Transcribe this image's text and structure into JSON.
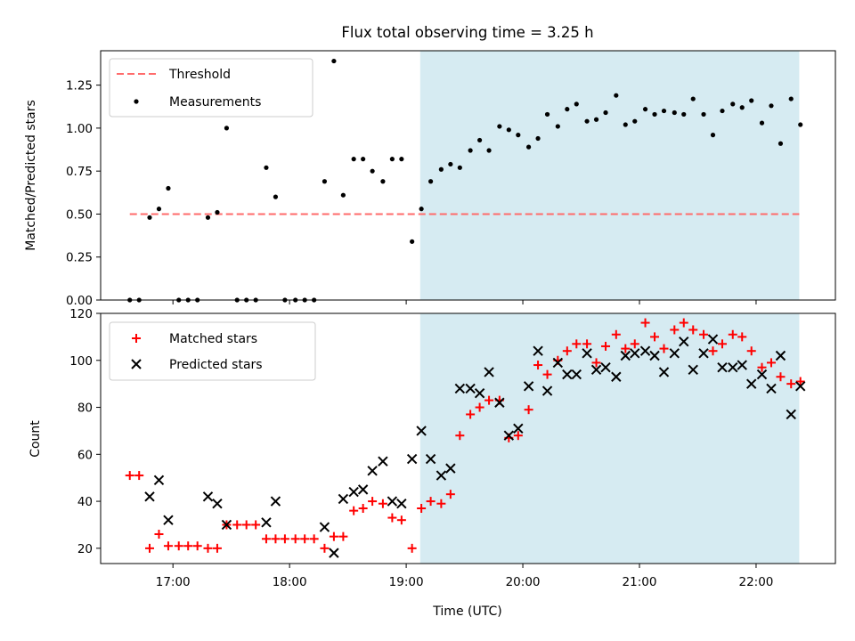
{
  "chart_data": [
    {
      "type": "scatter",
      "title": "Flux total observing time = 3.25 h",
      "ylabel": "Matched/Predicted stars",
      "ylim": [
        0,
        1.45
      ],
      "xlim": [
        16.38,
        22.68
      ],
      "yticks": [
        0.0,
        0.25,
        0.5,
        0.75,
        1.0,
        1.25
      ],
      "ytick_labels": [
        "0.00",
        "0.25",
        "0.50",
        "0.75",
        "1.00",
        "1.25"
      ],
      "legend_position": "upper-left",
      "shaded_region": {
        "x0": 19.12,
        "x1": 22.37,
        "color": "#add8e6"
      },
      "threshold": {
        "name": "Threshold",
        "y": 0.5,
        "x0": 16.63,
        "x1": 22.37,
        "color": "#ff6b6b"
      },
      "series": [
        {
          "name": "Measurements",
          "color": "#000000",
          "points": [
            [
              16.63,
              0.0
            ],
            [
              16.71,
              0.0
            ],
            [
              16.8,
              0.48
            ],
            [
              16.88,
              0.53
            ],
            [
              16.96,
              0.65
            ],
            [
              17.05,
              0.0
            ],
            [
              17.13,
              0.0
            ],
            [
              17.21,
              0.0
            ],
            [
              17.3,
              0.48
            ],
            [
              17.38,
              0.51
            ],
            [
              17.46,
              1.0
            ],
            [
              17.55,
              0.0
            ],
            [
              17.63,
              0.0
            ],
            [
              17.71,
              0.0
            ],
            [
              17.8,
              0.77
            ],
            [
              17.88,
              0.6
            ],
            [
              17.96,
              0.0
            ],
            [
              18.05,
              0.0
            ],
            [
              18.13,
              0.0
            ],
            [
              18.21,
              0.0
            ],
            [
              18.3,
              0.69
            ],
            [
              18.38,
              1.39
            ],
            [
              18.46,
              0.61
            ],
            [
              18.55,
              0.82
            ],
            [
              18.63,
              0.82
            ],
            [
              18.71,
              0.75
            ],
            [
              18.8,
              0.69
            ],
            [
              18.88,
              0.82
            ],
            [
              18.96,
              0.82
            ],
            [
              19.05,
              0.34
            ],
            [
              19.13,
              0.53
            ],
            [
              19.21,
              0.69
            ],
            [
              19.3,
              0.76
            ],
            [
              19.38,
              0.79
            ],
            [
              19.46,
              0.77
            ],
            [
              19.55,
              0.87
            ],
            [
              19.63,
              0.93
            ],
            [
              19.71,
              0.87
            ],
            [
              19.8,
              1.01
            ],
            [
              19.88,
              0.99
            ],
            [
              19.96,
              0.96
            ],
            [
              20.05,
              0.89
            ],
            [
              20.13,
              0.94
            ],
            [
              20.21,
              1.08
            ],
            [
              20.3,
              1.01
            ],
            [
              20.38,
              1.11
            ],
            [
              20.46,
              1.14
            ],
            [
              20.55,
              1.04
            ],
            [
              20.63,
              1.05
            ],
            [
              20.71,
              1.09
            ],
            [
              20.8,
              1.19
            ],
            [
              20.88,
              1.02
            ],
            [
              20.96,
              1.04
            ],
            [
              21.05,
              1.11
            ],
            [
              21.13,
              1.08
            ],
            [
              21.21,
              1.1
            ],
            [
              21.3,
              1.09
            ],
            [
              21.38,
              1.08
            ],
            [
              21.46,
              1.17
            ],
            [
              21.55,
              1.08
            ],
            [
              21.63,
              0.96
            ],
            [
              21.71,
              1.1
            ],
            [
              21.8,
              1.14
            ],
            [
              21.88,
              1.12
            ],
            [
              21.96,
              1.16
            ],
            [
              22.05,
              1.03
            ],
            [
              22.13,
              1.13
            ],
            [
              22.21,
              0.91
            ],
            [
              22.3,
              1.17
            ],
            [
              22.38,
              1.02
            ]
          ]
        }
      ]
    },
    {
      "type": "scatter",
      "xlabel": "Time (UTC)",
      "ylabel": "Count",
      "ylim": [
        13.5,
        120
      ],
      "xlim": [
        16.38,
        22.68
      ],
      "xticks": [
        17,
        18,
        19,
        20,
        21,
        22
      ],
      "xtick_labels": [
        "17:00",
        "18:00",
        "19:00",
        "20:00",
        "21:00",
        "22:00"
      ],
      "yticks": [
        20,
        40,
        60,
        80,
        100,
        120
      ],
      "ytick_labels": [
        "20",
        "40",
        "60",
        "80",
        "100",
        "120"
      ],
      "legend_position": "upper-left",
      "shaded_region": {
        "x0": 19.12,
        "x1": 22.37,
        "color": "#add8e6"
      },
      "series": [
        {
          "name": "Matched stars",
          "marker": "plus",
          "color": "#ff0000",
          "points": [
            [
              16.63,
              51
            ],
            [
              16.71,
              51
            ],
            [
              16.8,
              20
            ],
            [
              16.88,
              26
            ],
            [
              16.96,
              21
            ],
            [
              17.05,
              21
            ],
            [
              17.13,
              21
            ],
            [
              17.21,
              21
            ],
            [
              17.3,
              20
            ],
            [
              17.38,
              20
            ],
            [
              17.46,
              30
            ],
            [
              17.55,
              30
            ],
            [
              17.63,
              30
            ],
            [
              17.71,
              30
            ],
            [
              17.8,
              24
            ],
            [
              17.88,
              24
            ],
            [
              17.96,
              24
            ],
            [
              18.05,
              24
            ],
            [
              18.13,
              24
            ],
            [
              18.21,
              24
            ],
            [
              18.3,
              20
            ],
            [
              18.38,
              25
            ],
            [
              18.46,
              25
            ],
            [
              18.55,
              36
            ],
            [
              18.63,
              37
            ],
            [
              18.71,
              40
            ],
            [
              18.8,
              39
            ],
            [
              18.88,
              33
            ],
            [
              18.96,
              32
            ],
            [
              19.05,
              20
            ],
            [
              19.13,
              37
            ],
            [
              19.21,
              40
            ],
            [
              19.3,
              39
            ],
            [
              19.38,
              43
            ],
            [
              19.46,
              68
            ],
            [
              19.55,
              77
            ],
            [
              19.63,
              80
            ],
            [
              19.71,
              83
            ],
            [
              19.8,
              83
            ],
            [
              19.88,
              67
            ],
            [
              19.96,
              68
            ],
            [
              20.05,
              79
            ],
            [
              20.13,
              98
            ],
            [
              20.21,
              94
            ],
            [
              20.3,
              100
            ],
            [
              20.38,
              104
            ],
            [
              20.46,
              107
            ],
            [
              20.55,
              107
            ],
            [
              20.63,
              99
            ],
            [
              20.71,
              106
            ],
            [
              20.8,
              111
            ],
            [
              20.88,
              105
            ],
            [
              20.96,
              107
            ],
            [
              21.05,
              116
            ],
            [
              21.13,
              110
            ],
            [
              21.21,
              105
            ],
            [
              21.3,
              113
            ],
            [
              21.38,
              116
            ],
            [
              21.46,
              113
            ],
            [
              21.55,
              111
            ],
            [
              21.63,
              104
            ],
            [
              21.71,
              107
            ],
            [
              21.8,
              111
            ],
            [
              21.88,
              110
            ],
            [
              21.96,
              104
            ],
            [
              22.05,
              97
            ],
            [
              22.13,
              99
            ],
            [
              22.21,
              93
            ],
            [
              22.3,
              90
            ],
            [
              22.38,
              91
            ]
          ]
        },
        {
          "name": "Predicted stars",
          "marker": "x",
          "color": "#000000",
          "points": [
            [
              16.8,
              42
            ],
            [
              16.88,
              49
            ],
            [
              16.96,
              32
            ],
            [
              17.3,
              42
            ],
            [
              17.38,
              39
            ],
            [
              17.46,
              30
            ],
            [
              17.8,
              31
            ],
            [
              17.88,
              40
            ],
            [
              18.3,
              29
            ],
            [
              18.38,
              18
            ],
            [
              18.46,
              41
            ],
            [
              18.55,
              44
            ],
            [
              18.63,
              45
            ],
            [
              18.71,
              53
            ],
            [
              18.8,
              57
            ],
            [
              18.88,
              40
            ],
            [
              18.96,
              39
            ],
            [
              19.05,
              58
            ],
            [
              19.13,
              70
            ],
            [
              19.21,
              58
            ],
            [
              19.3,
              51
            ],
            [
              19.38,
              54
            ],
            [
              19.46,
              88
            ],
            [
              19.55,
              88
            ],
            [
              19.63,
              86
            ],
            [
              19.71,
              95
            ],
            [
              19.8,
              82
            ],
            [
              19.88,
              68
            ],
            [
              19.96,
              71
            ],
            [
              20.05,
              89
            ],
            [
              20.13,
              104
            ],
            [
              20.21,
              87
            ],
            [
              20.3,
              99
            ],
            [
              20.38,
              94
            ],
            [
              20.46,
              94
            ],
            [
              20.55,
              103
            ],
            [
              20.63,
              96
            ],
            [
              20.71,
              97
            ],
            [
              20.8,
              93
            ],
            [
              20.88,
              102
            ],
            [
              20.96,
              103
            ],
            [
              21.05,
              104
            ],
            [
              21.13,
              102
            ],
            [
              21.21,
              95
            ],
            [
              21.3,
              103
            ],
            [
              21.38,
              108
            ],
            [
              21.46,
              96
            ],
            [
              21.55,
              103
            ],
            [
              21.63,
              109
            ],
            [
              21.71,
              97
            ],
            [
              21.8,
              97
            ],
            [
              21.88,
              98
            ],
            [
              21.96,
              90
            ],
            [
              22.05,
              94
            ],
            [
              22.13,
              88
            ],
            [
              22.21,
              102
            ],
            [
              22.3,
              77
            ],
            [
              22.38,
              89
            ]
          ]
        }
      ]
    }
  ]
}
